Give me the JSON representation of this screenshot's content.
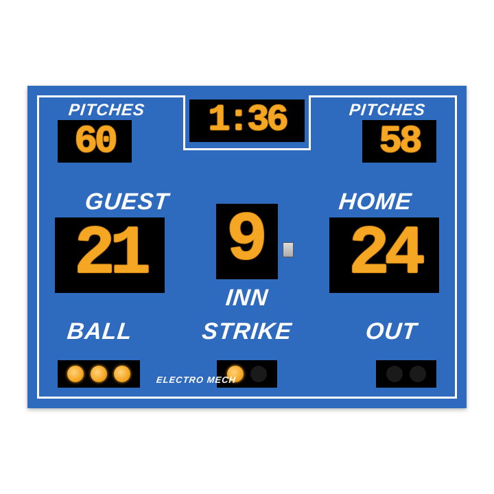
{
  "colors": {
    "board_bg": "#2e6bbf",
    "frame": "#ffffff",
    "label_text": "#ffffff",
    "display_bg": "#000000",
    "led": "#f5a623"
  },
  "labels": {
    "pitches_left": "PITCHES",
    "pitches_right": "PITCHES",
    "guest": "GUEST",
    "home": "HOME",
    "inn": "INN",
    "ball": "BALL",
    "strike": "STRIKE",
    "out": "OUT"
  },
  "values": {
    "clock": "1:36",
    "pitches_left": "60",
    "pitches_right": "58",
    "guest_score": "21",
    "home_score": "24",
    "inning": "9"
  },
  "counts": {
    "ball_max": 3,
    "ball_on": 3,
    "strike_max": 2,
    "strike_on": 1,
    "out_max": 2,
    "out_on": 0
  },
  "brand": "ELECTRO MECH",
  "typography": {
    "label_font_weight": 900,
    "label_font_style": "italic",
    "digit_font_family": "Courier New, monospace"
  }
}
